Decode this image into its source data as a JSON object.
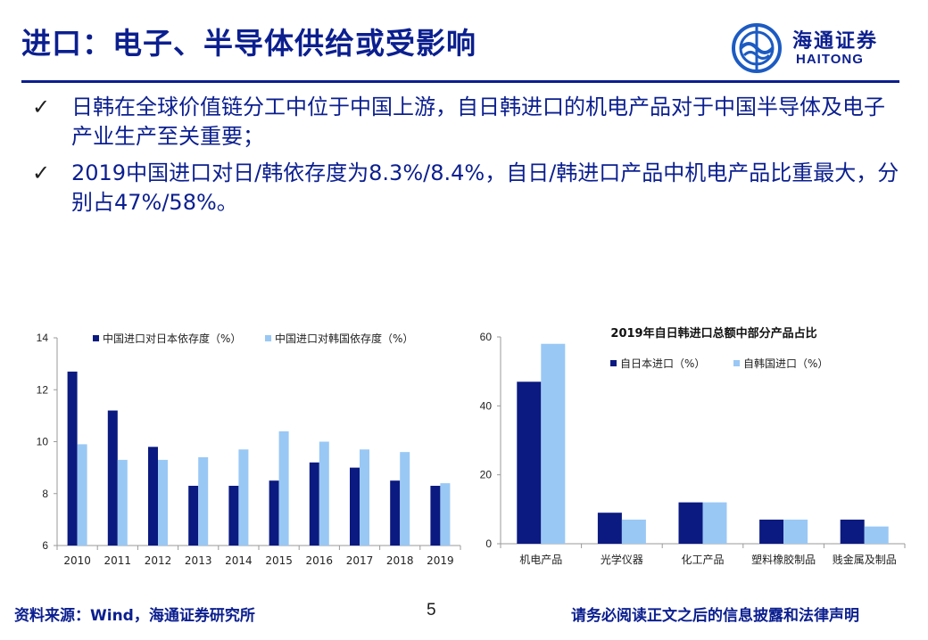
{
  "slide": {
    "title": "进口：电子、半导体供给或受影响",
    "logo": {
      "cn": "海通证券",
      "en": "HAITONG"
    },
    "bullets": [
      {
        "check": "✓",
        "text": "日韩在全球价值链分工中位于中国上游，自日韩进口的机电产品对于中国半导体及电子产业生产至关重要；"
      },
      {
        "check": "✓",
        "text": "2019中国进口对日/韩依存度为8.3%/8.4%，自日/韩进口产品中机电产品比重最大，分别占47%/58%。"
      }
    ],
    "footer": {
      "source": "资料来源：Wind，海通证券研究所",
      "page": "5",
      "disclaimer": "请务必阅读正文之后的信息披露和法律声明"
    }
  },
  "colors": {
    "dark": "#0b1a80",
    "light": "#99c8f5",
    "accent": "#0b1f8f"
  },
  "chart_data": [
    {
      "type": "bar",
      "title": "",
      "categories": [
        "2010",
        "2011",
        "2012",
        "2013",
        "2014",
        "2015",
        "2016",
        "2017",
        "2018",
        "2019"
      ],
      "series": [
        {
          "name": "中国进口对日本依存度（%）",
          "values": [
            12.7,
            11.2,
            9.8,
            8.3,
            8.3,
            8.5,
            9.2,
            9.0,
            8.5,
            8.3
          ]
        },
        {
          "name": "中国进口对韩国依存度（%）",
          "values": [
            9.9,
            9.3,
            9.3,
            9.4,
            9.7,
            10.4,
            10.0,
            9.7,
            9.6,
            8.4
          ]
        }
      ],
      "ylim": [
        6,
        14
      ],
      "yticks": [
        "6",
        "8",
        "10",
        "12",
        "14"
      ],
      "legend": "top",
      "grid": false
    },
    {
      "type": "bar",
      "title": "2019年自日韩进口总额中部分产品占比",
      "categories": [
        "机电产品",
        "光学仪器",
        "化工产品",
        "塑料橡胶制品",
        "贱金属及制品"
      ],
      "series": [
        {
          "name": "自日本进口（%）",
          "values": [
            47,
            9,
            12,
            7,
            7
          ]
        },
        {
          "name": "自韩国进口（%）",
          "values": [
            58,
            7,
            12,
            7,
            5
          ]
        }
      ],
      "ylim": [
        0,
        60
      ],
      "yticks": [
        "0",
        "20",
        "40",
        "60"
      ],
      "legend": "top",
      "grid": false
    }
  ]
}
